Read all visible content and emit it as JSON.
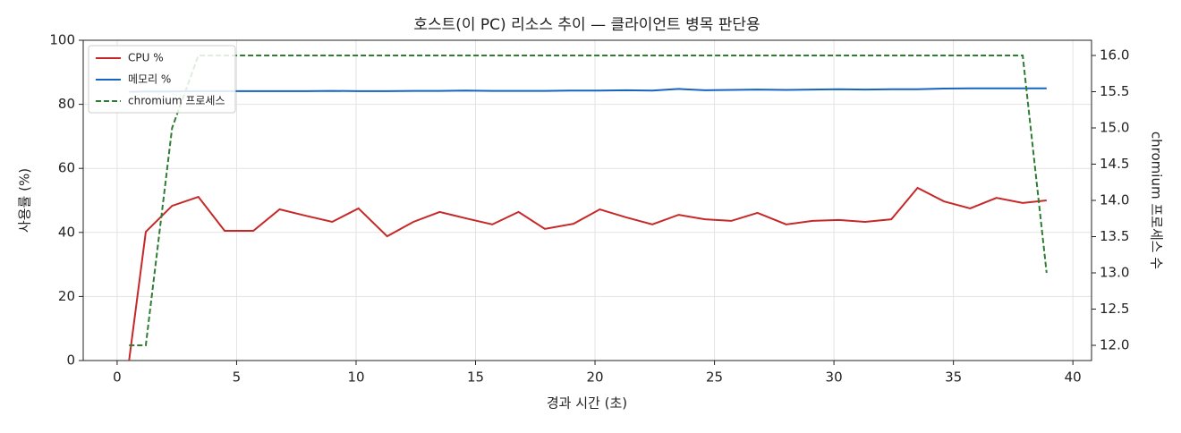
{
  "chart_data": {
    "type": "line",
    "title": "호스트(이 PC) 리소스 추이 — 클라이언트 병목 판단용",
    "x_label": "경과 시간 (초)",
    "y_label": "사용률 (%)",
    "y2_label": "chromium 프로세스 수",
    "x": [
      0.5,
      1.2,
      2.3,
      3.4,
      4.5,
      5.7,
      6.8,
      7.9,
      9.0,
      10.1,
      11.3,
      12.4,
      13.5,
      14.6,
      15.7,
      16.8,
      17.9,
      19.1,
      20.2,
      21.3,
      22.4,
      23.5,
      24.6,
      25.7,
      26.8,
      28.0,
      29.1,
      30.2,
      31.3,
      32.4,
      33.5,
      34.6,
      35.7,
      36.8,
      37.9,
      38.9
    ],
    "series": [
      {
        "name": "CPU %",
        "color": "#c62828",
        "dash": false,
        "values": [
          0,
          40.2,
          48.3,
          51.1,
          40.5,
          40.5,
          47.2,
          45.2,
          43.3,
          47.5,
          38.8,
          43.3,
          46.4,
          44.4,
          42.5,
          46.4,
          41.1,
          42.7,
          47.2,
          44.7,
          42.5,
          45.5,
          44.1,
          43.6,
          46.1,
          42.5,
          43.6,
          43.9,
          43.3,
          44.1,
          53.9,
          49.7,
          47.5,
          50.8,
          49.2,
          50.0
        ]
      },
      {
        "name": "메모리 %",
        "color": "#1565c0",
        "dash": false,
        "values": [
          83.9,
          84.0,
          84.0,
          84.1,
          84.1,
          84.1,
          84.1,
          84.1,
          84.2,
          84.1,
          84.1,
          84.2,
          84.2,
          84.3,
          84.2,
          84.2,
          84.2,
          84.3,
          84.3,
          84.4,
          84.3,
          84.8,
          84.4,
          84.5,
          84.6,
          84.5,
          84.6,
          84.7,
          84.6,
          84.7,
          84.7,
          84.9,
          85.0,
          85.0,
          85.0,
          85.0
        ]
      },
      {
        "name": "chromium 프로세스",
        "color": "#2e7d32",
        "dash": true,
        "axis": "y2",
        "values": [
          12,
          12,
          15,
          16,
          16,
          16,
          16,
          16,
          16,
          16,
          16,
          16,
          16,
          16,
          16,
          16,
          16,
          16,
          16,
          16,
          16,
          16,
          16,
          16,
          16,
          16,
          16,
          16,
          16,
          16,
          16,
          16,
          16,
          16,
          16,
          13
        ]
      }
    ],
    "xlim": [
      -1.42,
      40.78
    ],
    "xticks": [
      0,
      5,
      10,
      15,
      20,
      25,
      30,
      35,
      40
    ],
    "ylim": [
      0,
      100
    ],
    "yticks": [
      0,
      20,
      40,
      60,
      80,
      100
    ],
    "y2lim": [
      11.79,
      16.21
    ],
    "y2ticks": [
      {
        "value": 12,
        "label": "12.0"
      },
      {
        "value": 12.5,
        "label": "12.5"
      },
      {
        "value": 13,
        "label": "13.0"
      },
      {
        "value": 13.5,
        "label": "13.5"
      },
      {
        "value": 14,
        "label": "14.0"
      },
      {
        "value": 14.5,
        "label": "14.5"
      },
      {
        "value": 15,
        "label": "15.0"
      },
      {
        "value": 15.5,
        "label": "15.5"
      },
      {
        "value": 16,
        "label": "16.0"
      }
    ],
    "grid": true,
    "legend": "upper-left"
  }
}
